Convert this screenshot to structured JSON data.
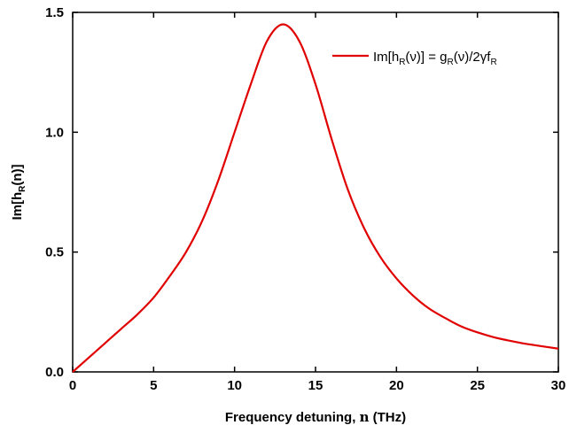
{
  "chart_data": {
    "type": "line",
    "xlabel_text": "Frequency detuning, ",
    "xlabel_sym": "n",
    "xlabel_unit": " (THz)",
    "ylabel_pre": "Im[h",
    "ylabel_sub": "R",
    "ylabel_post": "(n)]",
    "xlim": [
      0,
      30
    ],
    "ylim": [
      0,
      1.5
    ],
    "x_ticks": [
      0,
      5,
      10,
      15,
      20,
      25,
      30
    ],
    "x_tick_labels": [
      "0",
      "5",
      "10",
      "15",
      "20",
      "25",
      "30"
    ],
    "y_ticks": [
      0,
      0.5,
      1.0,
      1.5
    ],
    "y_tick_labels": [
      "0.0",
      "0.5",
      "1.0",
      "1.5"
    ],
    "grid": false,
    "legend_position": "top-right",
    "color": "#e00000",
    "legend": {
      "t1": "Im[h",
      "t1_sub": "R",
      "t2": "(ν)] = g",
      "t2_sub": "R",
      "t3": "(ν)/2γf",
      "t3_sub": "R"
    },
    "series": [
      {
        "x": [
          0,
          1,
          2,
          3,
          4,
          5,
          6,
          7,
          8,
          9,
          10,
          11,
          12,
          13,
          14,
          15,
          16,
          17,
          18,
          19,
          20,
          21,
          22,
          23,
          24,
          25,
          26,
          27,
          28,
          29,
          30
        ],
        "y": [
          0.0,
          0.06,
          0.12,
          0.18,
          0.24,
          0.31,
          0.4,
          0.5,
          0.63,
          0.8,
          1.0,
          1.2,
          1.38,
          1.45,
          1.38,
          1.2,
          0.97,
          0.76,
          0.6,
          0.48,
          0.39,
          0.32,
          0.265,
          0.225,
          0.19,
          0.165,
          0.145,
          0.13,
          0.117,
          0.107,
          0.097
        ]
      }
    ]
  }
}
